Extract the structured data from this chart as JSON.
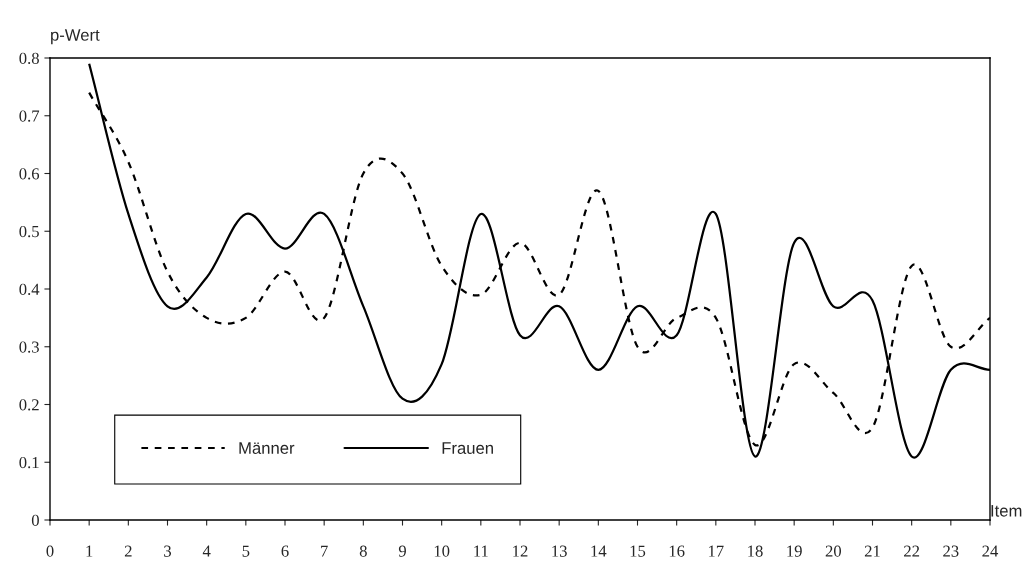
{
  "chart_data": {
    "type": "line",
    "ylabel": "p-Wert",
    "xlabel": "Item",
    "x": [
      1,
      2,
      3,
      4,
      5,
      6,
      7,
      8,
      9,
      10,
      11,
      12,
      13,
      14,
      15,
      16,
      17,
      18,
      19,
      20,
      21,
      22,
      23,
      24
    ],
    "series": [
      {
        "name": "Männer",
        "color": "#000000",
        "line_style": "dashed",
        "values": [
          0.74,
          0.62,
          0.43,
          0.35,
          0.35,
          0.43,
          0.35,
          0.6,
          0.6,
          0.44,
          0.39,
          0.48,
          0.39,
          0.57,
          0.3,
          0.35,
          0.35,
          0.13,
          0.27,
          0.22,
          0.16,
          0.44,
          0.3,
          0.35
        ]
      },
      {
        "name": "Frauen",
        "color": "#000000",
        "line_style": "solid",
        "values": [
          0.79,
          0.53,
          0.37,
          0.42,
          0.53,
          0.47,
          0.53,
          0.37,
          0.21,
          0.27,
          0.53,
          0.32,
          0.37,
          0.26,
          0.37,
          0.32,
          0.53,
          0.11,
          0.48,
          0.37,
          0.38,
          0.11,
          0.26,
          0.26
        ]
      }
    ],
    "xlim": [
      0,
      24
    ],
    "xticks": [
      0,
      1,
      2,
      3,
      4,
      5,
      6,
      7,
      8,
      9,
      10,
      11,
      12,
      13,
      14,
      15,
      16,
      17,
      18,
      19,
      20,
      21,
      22,
      23,
      24
    ],
    "ylim": [
      0,
      0.8
    ],
    "yticks": [
      0,
      0.1,
      0.2,
      0.3,
      0.4,
      0.5,
      0.6,
      0.7,
      0.8
    ],
    "grid": false,
    "legend": "bottom left",
    "marker": "none"
  }
}
